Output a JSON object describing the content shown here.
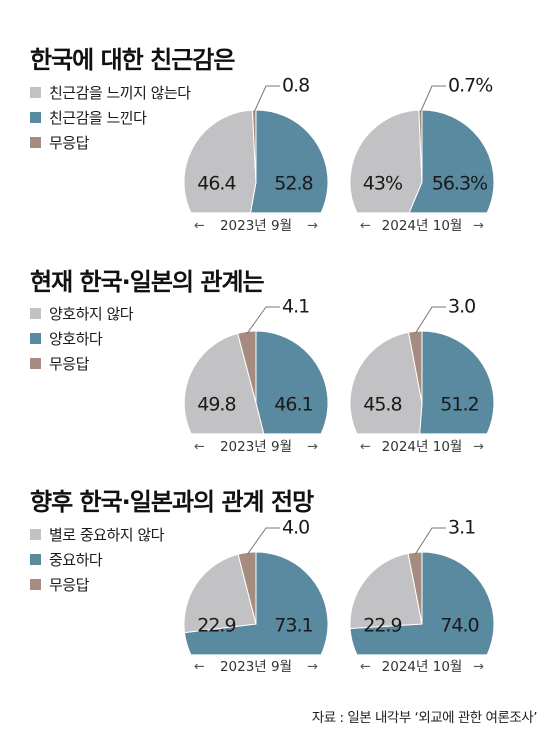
{
  "colors": {
    "negative": "#c2c2c4",
    "positive": "#5a8aa0",
    "no_answer": "#a58c7f",
    "pie_stroke": "#ffffff"
  },
  "year_labels": [
    "2023년 9월",
    "2024년 10월"
  ],
  "source": "자료 : 일본 내각부 ‘외교에 관한 여론조사’",
  "chart_data": [
    {
      "type": "pie",
      "title": "한국에 대한 친근감은",
      "legend": [
        "친근감을 느끼지 않는다",
        "친근감을 느낀다",
        "무응답"
      ],
      "pies": [
        {
          "year": "2023년 9월",
          "values": [
            46.4,
            52.8,
            0.8
          ],
          "labels": [
            "46.4",
            "52.8",
            "0.8"
          ]
        },
        {
          "year": "2024년 10월",
          "values": [
            43,
            56.3,
            0.7
          ],
          "labels": [
            "43%",
            "56.3%",
            "0.7%"
          ]
        }
      ]
    },
    {
      "type": "pie",
      "title": "현재 한국·일본의 관계는",
      "legend": [
        "양호하지 않다",
        "양호하다",
        "무응답"
      ],
      "pies": [
        {
          "year": "2023년 9월",
          "values": [
            49.8,
            46.1,
            4.1
          ],
          "labels": [
            "49.8",
            "46.1",
            "4.1"
          ]
        },
        {
          "year": "2024년 10월",
          "values": [
            45.8,
            51.2,
            3.0
          ],
          "labels": [
            "45.8",
            "51.2",
            "3.0"
          ]
        }
      ]
    },
    {
      "type": "pie",
      "title": "향후 한국·일본과의 관계 전망",
      "legend": [
        "별로 중요하지 않다",
        "중요하다",
        "무응답"
      ],
      "pies": [
        {
          "year": "2023년 9월",
          "values": [
            22.9,
            73.1,
            4.0
          ],
          "labels": [
            "22.9",
            "73.1",
            "4.0"
          ]
        },
        {
          "year": "2024년 10월",
          "values": [
            22.9,
            74.0,
            3.1
          ],
          "labels": [
            "22.9",
            "74.0",
            "3.1"
          ]
        }
      ]
    }
  ]
}
